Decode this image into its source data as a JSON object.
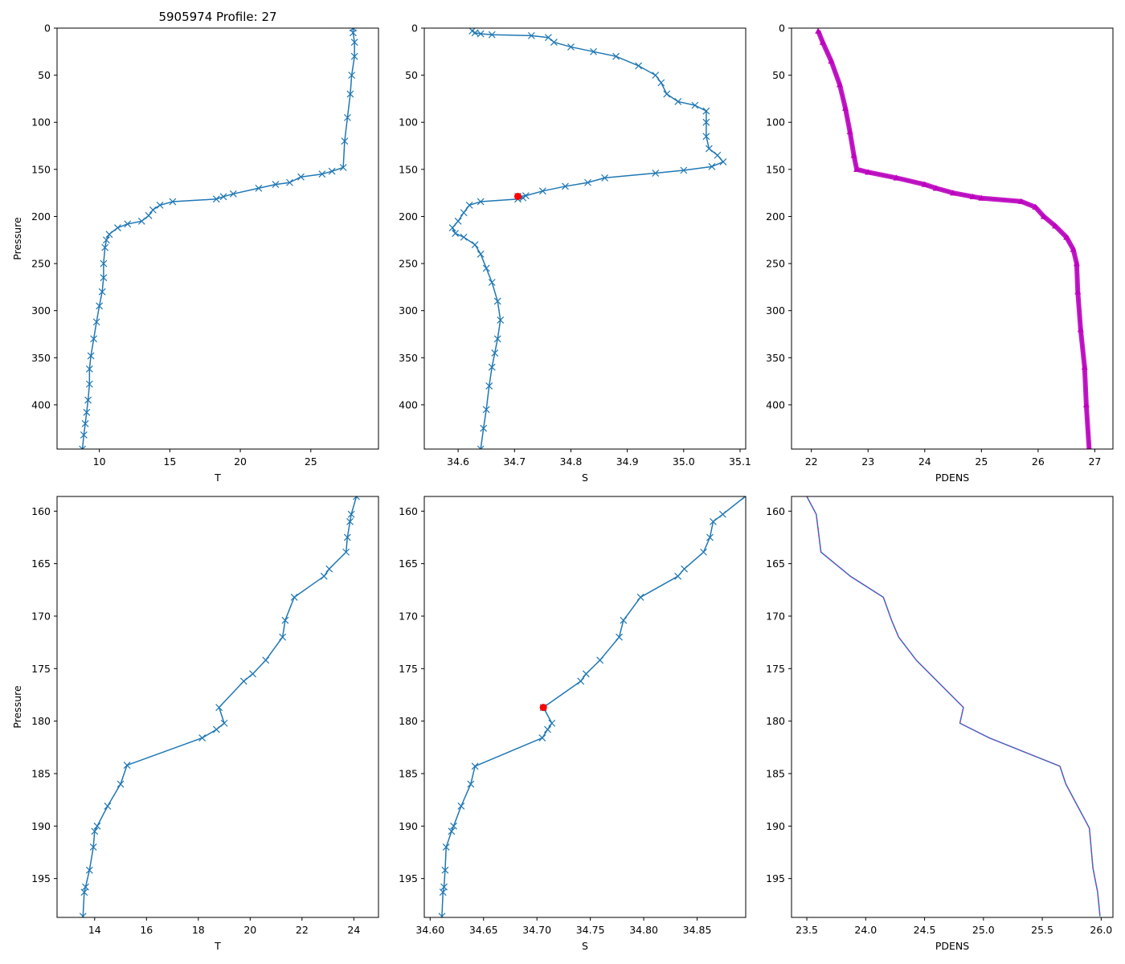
{
  "figure_title": "5905974 Profile: 27",
  "colors": {
    "line": "#1f77b4",
    "pdens_marker": "#bf00bf",
    "highlight": "#ff0000",
    "pdens_dash": "#9b3fbf"
  },
  "chart_data": [
    {
      "id": "T_full",
      "type": "line",
      "xlabel": "T",
      "ylabel": "Pressure",
      "xlim": [
        7,
        29.8
      ],
      "ylim": [
        447,
        0
      ],
      "marker": "x",
      "xticks": [
        10,
        15,
        20,
        25
      ],
      "xtick_labels": [
        "10",
        "15",
        "20",
        "25"
      ],
      "yticks": [
        0,
        50,
        100,
        150,
        200,
        250,
        300,
        350,
        400
      ],
      "ytick_labels": [
        "0",
        "50",
        "100",
        "150",
        "200",
        "250",
        "300",
        "350",
        "400"
      ],
      "series": [
        {
          "name": "T",
          "points": [
            [
              28,
              0
            ],
            [
              28,
              5
            ],
            [
              28.1,
              15
            ],
            [
              28.1,
              30
            ],
            [
              27.9,
              50
            ],
            [
              27.8,
              70
            ],
            [
              27.6,
              95
            ],
            [
              27.4,
              120
            ],
            [
              27.3,
              148
            ],
            [
              26.5,
              152
            ],
            [
              25.8,
              155
            ],
            [
              24.3,
              158
            ],
            [
              23.5,
              164
            ],
            [
              22.5,
              166
            ],
            [
              21.3,
              170
            ],
            [
              19.5,
              176
            ],
            [
              18.8,
              179
            ],
            [
              18.3,
              181.5
            ],
            [
              15.2,
              184.3
            ],
            [
              14.3,
              188
            ],
            [
              13.8,
              193
            ],
            [
              13.5,
              199
            ],
            [
              13,
              205
            ],
            [
              12,
              208
            ],
            [
              11.3,
              212
            ],
            [
              10.7,
              219
            ],
            [
              10.5,
              225
            ],
            [
              10.4,
              233
            ],
            [
              10.3,
              250
            ],
            [
              10.3,
              265
            ],
            [
              10.2,
              280
            ],
            [
              10.0,
              295
            ],
            [
              9.8,
              312
            ],
            [
              9.6,
              330
            ],
            [
              9.4,
              348
            ],
            [
              9.3,
              362
            ],
            [
              9.3,
              378
            ],
            [
              9.2,
              395
            ],
            [
              9.1,
              408
            ],
            [
              9.0,
              420
            ],
            [
              8.9,
              432
            ],
            [
              8.8,
              447
            ]
          ]
        }
      ]
    },
    {
      "id": "S_full",
      "type": "line",
      "xlabel": "S",
      "ylabel": "",
      "xlim": [
        34.54,
        35.11
      ],
      "ylim": [
        447,
        0
      ],
      "marker": "x",
      "xticks": [
        34.6,
        34.7,
        34.8,
        34.9,
        35.0,
        35.1
      ],
      "xtick_labels": [
        "34.6",
        "34.7",
        "34.8",
        "34.9",
        "35.0",
        "35.1"
      ],
      "yticks": [
        0,
        50,
        100,
        150,
        200,
        250,
        300,
        350,
        400
      ],
      "ytick_labels": [
        "0",
        "50",
        "100",
        "150",
        "200",
        "250",
        "300",
        "350",
        "400"
      ],
      "highlight_point": [
        34.706,
        178.7
      ],
      "series": [
        {
          "name": "S",
          "points": [
            [
              34.625,
              3
            ],
            [
              34.63,
              5
            ],
            [
              34.64,
              6
            ],
            [
              34.66,
              7
            ],
            [
              34.73,
              8
            ],
            [
              34.76,
              10
            ],
            [
              34.77,
              15
            ],
            [
              34.8,
              20
            ],
            [
              34.84,
              25
            ],
            [
              34.88,
              30
            ],
            [
              34.92,
              40
            ],
            [
              34.95,
              50
            ],
            [
              34.96,
              58
            ],
            [
              34.97,
              70
            ],
            [
              34.99,
              78
            ],
            [
              35.02,
              82
            ],
            [
              35.04,
              88
            ],
            [
              35.04,
              100
            ],
            [
              35.04,
              115
            ],
            [
              35.045,
              128
            ],
            [
              35.06,
              135
            ],
            [
              35.07,
              142
            ],
            [
              35.05,
              147
            ],
            [
              35.0,
              151
            ],
            [
              34.95,
              154
            ],
            [
              34.86,
              159
            ],
            [
              34.83,
              164
            ],
            [
              34.79,
              168
            ],
            [
              34.75,
              173
            ],
            [
              34.72,
              178
            ],
            [
              34.706,
              178.7
            ],
            [
              34.715,
              180.2
            ],
            [
              34.706,
              181.5
            ],
            [
              34.64,
              184.3
            ],
            [
              34.62,
              188
            ],
            [
              34.61,
              196
            ],
            [
              34.6,
              205
            ],
            [
              34.59,
              212
            ],
            [
              34.595,
              218
            ],
            [
              34.61,
              222
            ],
            [
              34.63,
              230
            ],
            [
              34.64,
              240
            ],
            [
              34.65,
              255
            ],
            [
              34.66,
              270
            ],
            [
              34.67,
              290
            ],
            [
              34.675,
              310
            ],
            [
              34.67,
              330
            ],
            [
              34.665,
              345
            ],
            [
              34.66,
              360
            ],
            [
              34.655,
              380
            ],
            [
              34.65,
              405
            ],
            [
              34.645,
              425
            ],
            [
              34.64,
              447
            ]
          ]
        }
      ]
    },
    {
      "id": "PDENS_full",
      "type": "line",
      "xlabel": "PDENS",
      "ylabel": "",
      "xlim": [
        21.65,
        27.32
      ],
      "ylim": [
        447,
        0
      ],
      "marker": "^",
      "xticks": [
        22,
        23,
        24,
        25,
        26,
        27
      ],
      "xtick_labels": [
        "22",
        "23",
        "24",
        "25",
        "26",
        "27"
      ],
      "yticks": [
        0,
        50,
        100,
        150,
        200,
        250,
        300,
        350,
        400
      ],
      "ytick_labels": [
        "0",
        "50",
        "100",
        "150",
        "200",
        "250",
        "300",
        "350",
        "400"
      ],
      "series": [
        {
          "name": "PDENS",
          "points": [
            [
              22.12,
              3
            ],
            [
              22.2,
              15
            ],
            [
              22.35,
              35
            ],
            [
              22.5,
              60
            ],
            [
              22.6,
              85
            ],
            [
              22.68,
              110
            ],
            [
              22.75,
              135
            ],
            [
              22.8,
              150
            ],
            [
              23.0,
              153
            ],
            [
              23.5,
              159
            ],
            [
              24.0,
              166
            ],
            [
              24.2,
              170
            ],
            [
              24.5,
              175
            ],
            [
              24.85,
              179
            ],
            [
              25.0,
              180.5
            ],
            [
              25.7,
              184
            ],
            [
              25.95,
              190
            ],
            [
              26.1,
              200
            ],
            [
              26.3,
              210
            ],
            [
              26.5,
              222
            ],
            [
              26.62,
              235
            ],
            [
              26.68,
              250
            ],
            [
              26.7,
              280
            ],
            [
              26.75,
              320
            ],
            [
              26.82,
              360
            ],
            [
              26.85,
              400
            ],
            [
              26.9,
              447
            ]
          ]
        }
      ]
    },
    {
      "id": "T_zoom",
      "type": "line",
      "xlabel": "T",
      "ylabel": "Pressure",
      "xlim": [
        12.55,
        24.95
      ],
      "ylim": [
        198.7,
        158.6
      ],
      "marker": "x",
      "xticks": [
        14,
        16,
        18,
        20,
        22,
        24
      ],
      "xtick_labels": [
        "14",
        "16",
        "18",
        "20",
        "22",
        "24"
      ],
      "yticks": [
        160,
        165,
        170,
        175,
        180,
        185,
        190,
        195
      ],
      "ytick_labels": [
        "160",
        "165",
        "170",
        "175",
        "180",
        "185",
        "190",
        "195"
      ],
      "series": [
        {
          "name": "T",
          "points": [
            [
              24.1,
              158.6
            ],
            [
              23.9,
              160.3
            ],
            [
              23.85,
              161
            ],
            [
              23.75,
              162.5
            ],
            [
              23.7,
              163.9
            ],
            [
              23.05,
              165.5
            ],
            [
              22.85,
              166.2
            ],
            [
              21.7,
              168.2
            ],
            [
              21.35,
              170.4
            ],
            [
              21.25,
              172
            ],
            [
              20.6,
              174.2
            ],
            [
              20.1,
              175.5
            ],
            [
              19.75,
              176.2
            ],
            [
              18.8,
              178.7
            ],
            [
              19.0,
              180.2
            ],
            [
              18.7,
              180.8
            ],
            [
              18.15,
              181.6
            ],
            [
              15.25,
              184.2
            ],
            [
              15.0,
              186
            ],
            [
              14.5,
              188.1
            ],
            [
              14.1,
              190
            ],
            [
              14.0,
              190.5
            ],
            [
              13.95,
              192
            ],
            [
              13.8,
              194.2
            ],
            [
              13.65,
              195.8
            ],
            [
              13.6,
              196.3
            ],
            [
              13.55,
              198.6
            ]
          ]
        }
      ]
    },
    {
      "id": "S_zoom",
      "type": "line",
      "xlabel": "S",
      "ylabel": "",
      "xlim": [
        34.5945,
        34.8955
      ],
      "ylim": [
        198.7,
        158.6
      ],
      "marker": "x",
      "xticks": [
        34.6,
        34.65,
        34.7,
        34.75,
        34.8,
        34.85
      ],
      "xtick_labels": [
        "34.60",
        "34.65",
        "34.70",
        "34.75",
        "34.80",
        "34.85"
      ],
      "yticks": [
        160,
        165,
        170,
        175,
        180,
        185,
        190,
        195
      ],
      "ytick_labels": [
        "160",
        "165",
        "170",
        "175",
        "180",
        "185",
        "190",
        "195"
      ],
      "highlight_point": [
        34.706,
        178.7
      ],
      "series": [
        {
          "name": "S",
          "points": [
            [
              34.895,
              158.6
            ],
            [
              34.874,
              160.3
            ],
            [
              34.865,
              161
            ],
            [
              34.862,
              162.5
            ],
            [
              34.856,
              163.9
            ],
            [
              34.838,
              165.5
            ],
            [
              34.832,
              166.2
            ],
            [
              34.797,
              168.2
            ],
            [
              34.781,
              170.4
            ],
            [
              34.777,
              172
            ],
            [
              34.759,
              174.2
            ],
            [
              34.746,
              175.5
            ],
            [
              34.741,
              176.2
            ],
            [
              34.706,
              178.7
            ],
            [
              34.714,
              180.2
            ],
            [
              34.71,
              180.8
            ],
            [
              34.705,
              181.6
            ],
            [
              34.642,
              184.3
            ],
            [
              34.638,
              186
            ],
            [
              34.629,
              188.1
            ],
            [
              34.622,
              190
            ],
            [
              34.62,
              190.5
            ],
            [
              34.615,
              192
            ],
            [
              34.614,
              194.2
            ],
            [
              34.613,
              195.8
            ],
            [
              34.612,
              196.3
            ],
            [
              34.611,
              198.6
            ]
          ]
        }
      ]
    },
    {
      "id": "PDENS_zoom",
      "type": "line",
      "xlabel": "PDENS",
      "ylabel": "",
      "xlim": [
        23.37,
        26.1
      ],
      "ylim": [
        198.7,
        158.6
      ],
      "marker": "none",
      "xticks": [
        23.5,
        24.0,
        24.5,
        25.0,
        25.5,
        26.0
      ],
      "xtick_labels": [
        "23.5",
        "24.0",
        "24.5",
        "25.0",
        "25.5",
        "26.0"
      ],
      "yticks": [
        160,
        165,
        170,
        175,
        180,
        185,
        190,
        195
      ],
      "ytick_labels": [
        "160",
        "165",
        "170",
        "175",
        "180",
        "185",
        "190",
        "195"
      ],
      "series": [
        {
          "name": "PDENS",
          "points": [
            [
              23.5,
              158.6
            ],
            [
              23.58,
              160.3
            ],
            [
              23.62,
              163.9
            ],
            [
              23.87,
              166.2
            ],
            [
              24.15,
              168.2
            ],
            [
              24.22,
              170.4
            ],
            [
              24.28,
              172
            ],
            [
              24.43,
              174.2
            ],
            [
              24.83,
              178.7
            ],
            [
              24.8,
              180.2
            ],
            [
              25.05,
              181.6
            ],
            [
              25.65,
              184.3
            ],
            [
              25.7,
              186
            ],
            [
              25.8,
              188.1
            ],
            [
              25.9,
              190.2
            ],
            [
              25.93,
              194
            ],
            [
              25.97,
              196.3
            ],
            [
              25.99,
              198.6
            ]
          ]
        }
      ]
    }
  ]
}
